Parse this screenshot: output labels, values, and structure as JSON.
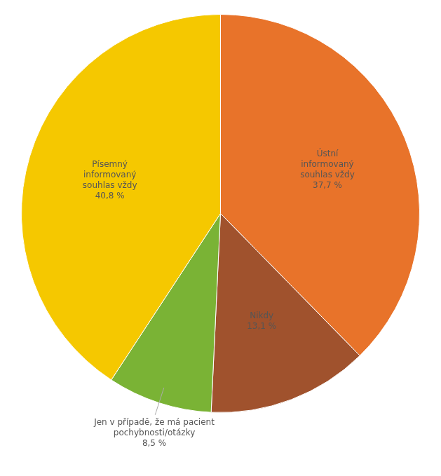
{
  "chart_data": {
    "type": "pie",
    "categories": [
      "Ústní\ninformovaný\nsouhlas vždy",
      "Nikdy",
      "Jen v případě, že má pacient\npochybnosti/otázky",
      "Písemný\ninformovaný\nsouhlas vždy"
    ],
    "values": [
      37.7,
      13.1,
      8.5,
      40.8
    ],
    "value_labels": [
      "37,7 %",
      "13,1 %",
      "8,5 %",
      "40,8 %"
    ],
    "colors": [
      "#E8732A",
      "#A0522D",
      "#7AB335",
      "#F5C800"
    ],
    "data_labels": true
  }
}
